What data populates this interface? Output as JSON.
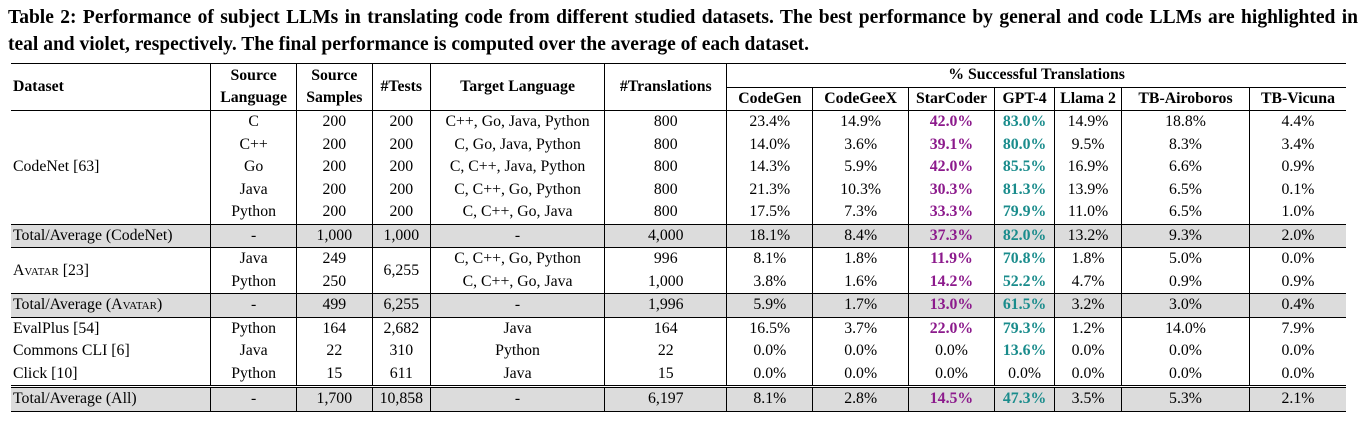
{
  "caption": "Table 2: Performance of subject LLMs in translating code from different studied datasets. The best performance by general and code LLMs are highlighted in teal and violet, respectively. The final performance is computed over the average of each dataset.",
  "colors": {
    "teal": "#1a8c8c",
    "violet": "#8c1a8c",
    "shade": "#dcdcdc"
  },
  "headers": {
    "dataset": "Dataset",
    "source_language": "Source Language",
    "source_samples": "Source Samples",
    "tests": "#Tests",
    "target_language": "Target Language",
    "translations": "#Translations",
    "success": "% Successful Translations",
    "models": [
      "CodeGen",
      "CodeGeeX",
      "StarCoder",
      "GPT-4",
      "Llama 2",
      "TB-Airoboros",
      "TB-Vicuna"
    ]
  },
  "codenet": {
    "name": "CodeNet [63]",
    "rows": [
      {
        "src": "C",
        "samples": "200",
        "tests": "200",
        "target": "C++, Go, Java, Python",
        "trans": "800",
        "vals": [
          "23.4%",
          "14.9%",
          "42.0%",
          "83.0%",
          "14.9%",
          "18.8%",
          "4.4%"
        ]
      },
      {
        "src": "C++",
        "samples": "200",
        "tests": "200",
        "target": "C, Go, Java, Python",
        "trans": "800",
        "vals": [
          "14.0%",
          "3.6%",
          "39.1%",
          "80.0%",
          "9.5%",
          "8.3%",
          "3.4%"
        ]
      },
      {
        "src": "Go",
        "samples": "200",
        "tests": "200",
        "target": "C, C++, Java, Python",
        "trans": "800",
        "vals": [
          "14.3%",
          "5.9%",
          "42.0%",
          "85.5%",
          "16.9%",
          "6.6%",
          "0.9%"
        ]
      },
      {
        "src": "Java",
        "samples": "200",
        "tests": "200",
        "target": "C, C++, Go, Python",
        "trans": "800",
        "vals": [
          "21.3%",
          "10.3%",
          "30.3%",
          "81.3%",
          "13.9%",
          "6.5%",
          "0.1%"
        ]
      },
      {
        "src": "Python",
        "samples": "200",
        "tests": "200",
        "target": "C, C++, Go, Java",
        "trans": "800",
        "vals": [
          "17.5%",
          "7.3%",
          "33.3%",
          "79.9%",
          "11.0%",
          "6.5%",
          "1.0%"
        ]
      }
    ],
    "total": {
      "label": "Total/Average (CodeNet)",
      "src": "-",
      "samples": "1,000",
      "tests": "1,000",
      "target": "-",
      "trans": "4,000",
      "vals": [
        "18.1%",
        "8.4%",
        "37.3%",
        "82.0%",
        "13.2%",
        "9.3%",
        "2.0%"
      ]
    }
  },
  "avatar": {
    "name": "Avatar [23]",
    "tests": "6,255",
    "rows": [
      {
        "src": "Java",
        "samples": "249",
        "target": "C, C++, Go, Python",
        "trans": "996",
        "vals": [
          "8.1%",
          "1.8%",
          "11.9%",
          "70.8%",
          "1.8%",
          "5.0%",
          "0.0%"
        ]
      },
      {
        "src": "Python",
        "samples": "250",
        "target": "C, C++, Go, Java",
        "trans": "1,000",
        "vals": [
          "3.8%",
          "1.6%",
          "14.2%",
          "52.2%",
          "4.7%",
          "0.9%",
          "0.9%"
        ]
      }
    ],
    "total": {
      "label_pre": "Total/Average (",
      "label_sc": "Avatar",
      "label_post": ")",
      "src": "-",
      "samples": "499",
      "tests": "6,255",
      "target": "-",
      "trans": "1,996",
      "vals": [
        "5.9%",
        "1.7%",
        "13.0%",
        "61.5%",
        "3.2%",
        "3.0%",
        "0.4%"
      ]
    }
  },
  "others": [
    {
      "name": "EvalPlus [54]",
      "src": "Python",
      "samples": "164",
      "tests": "2,682",
      "target": "Java",
      "trans": "164",
      "vals": [
        "16.5%",
        "3.7%",
        "22.0%",
        "79.3%",
        "1.2%",
        "14.0%",
        "7.9%"
      ]
    },
    {
      "name": "Commons CLI [6]",
      "src": "Java",
      "samples": "22",
      "tests": "310",
      "target": "Python",
      "trans": "22",
      "vals": [
        "0.0%",
        "0.0%",
        "0.0%",
        "13.6%",
        "0.0%",
        "0.0%",
        "0.0%"
      ]
    },
    {
      "name": "Click [10]",
      "src": "Python",
      "samples": "15",
      "tests": "611",
      "target": "Java",
      "trans": "15",
      "vals": [
        "0.0%",
        "0.0%",
        "0.0%",
        "0.0%",
        "0.0%",
        "0.0%",
        "0.0%"
      ]
    }
  ],
  "grand_total": {
    "label": "Total/Average (All)",
    "src": "-",
    "samples": "1,700",
    "tests": "10,858",
    "target": "-",
    "trans": "6,197",
    "vals": [
      "8.1%",
      "2.8%",
      "14.5%",
      "47.3%",
      "3.5%",
      "5.3%",
      "2.1%"
    ]
  }
}
